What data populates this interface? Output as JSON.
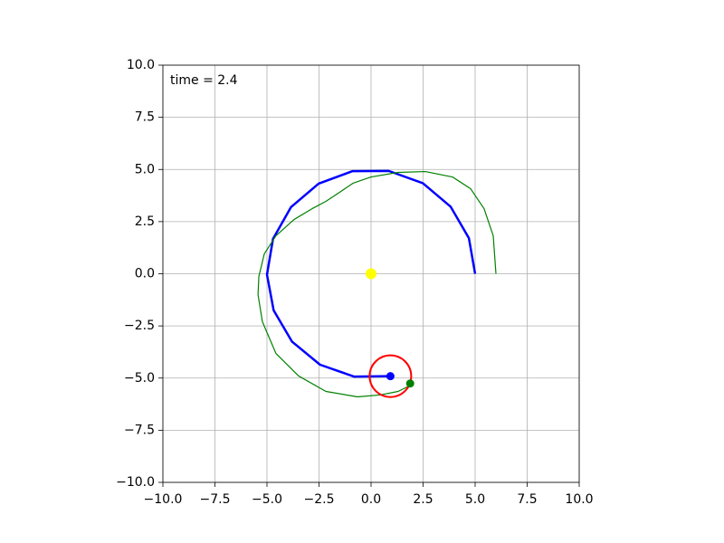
{
  "chart_data": {
    "type": "line",
    "annotation": "time = 2.4",
    "xlim": [
      -10,
      10
    ],
    "ylim": [
      -10,
      10
    ],
    "xticks": [
      {
        "value": -10,
        "label": "−10.0"
      },
      {
        "value": -7.5,
        "label": "−7.5"
      },
      {
        "value": -5,
        "label": "−5.0"
      },
      {
        "value": -2.5,
        "label": "−2.5"
      },
      {
        "value": 0,
        "label": "0.0"
      },
      {
        "value": 2.5,
        "label": "2.5"
      },
      {
        "value": 5,
        "label": "5.0"
      },
      {
        "value": 7.5,
        "label": "7.5"
      },
      {
        "value": 10,
        "label": "10.0"
      }
    ],
    "yticks": [
      {
        "value": -10,
        "label": "−10.0"
      },
      {
        "value": -7.5,
        "label": "−7.5"
      },
      {
        "value": -5,
        "label": "−5.0"
      },
      {
        "value": -2.5,
        "label": "−2.5"
      },
      {
        "value": 0,
        "label": "0.0"
      },
      {
        "value": 2.5,
        "label": "2.5"
      },
      {
        "value": 5,
        "label": "5.0"
      },
      {
        "value": 7.5,
        "label": "7.5"
      },
      {
        "value": 10,
        "label": "10.0"
      }
    ],
    "grid": true,
    "series": [
      {
        "color": "#0000ff",
        "linewidth": 2.5,
        "x": [
          5,
          4.7,
          3.82,
          2.49,
          0.85,
          -0.89,
          -2.52,
          -3.85,
          -4.71,
          -5.0,
          -4.68,
          -3.8,
          -2.45,
          -0.81,
          0.93
        ],
        "y": [
          0,
          1.71,
          3.22,
          4.34,
          4.93,
          4.92,
          4.32,
          3.19,
          1.67,
          -0.04,
          -1.75,
          -3.25,
          -4.36,
          -4.93,
          -4.91
        ]
      },
      {
        "color": "#008000",
        "linewidth": 1.2,
        "x": [
          6,
          5.87,
          5.43,
          4.78,
          3.91,
          2.61,
          1.3,
          0,
          -0.87,
          -1.52,
          -2.17,
          -2.83,
          -3.7,
          -4.57,
          -5.13,
          -5.39,
          -5.43,
          -5.22,
          -4.57,
          -3.48,
          -2.17,
          -0.65,
          0.43,
          1.3,
          1.83,
          1.88
        ],
        "y": [
          0,
          1.82,
          3.12,
          4.08,
          4.64,
          4.9,
          4.86,
          4.64,
          4.34,
          3.9,
          3.47,
          3.12,
          2.6,
          1.82,
          0.95,
          -0.13,
          -1.0,
          -2.3,
          -3.82,
          -4.9,
          -5.64,
          -5.9,
          -5.81,
          -5.64,
          -5.38,
          -5.26
        ]
      }
    ],
    "circles": [
      {
        "color": "#ff0000",
        "center": [
          0.93,
          -4.91
        ],
        "radius": 1
      }
    ],
    "points": [
      {
        "color": "#ffff00",
        "x": 0,
        "y": 0
      },
      {
        "color": "#0000ff",
        "x": 0.93,
        "y": -4.91
      },
      {
        "color": "#008000",
        "x": 1.88,
        "y": -5.26
      }
    ]
  }
}
